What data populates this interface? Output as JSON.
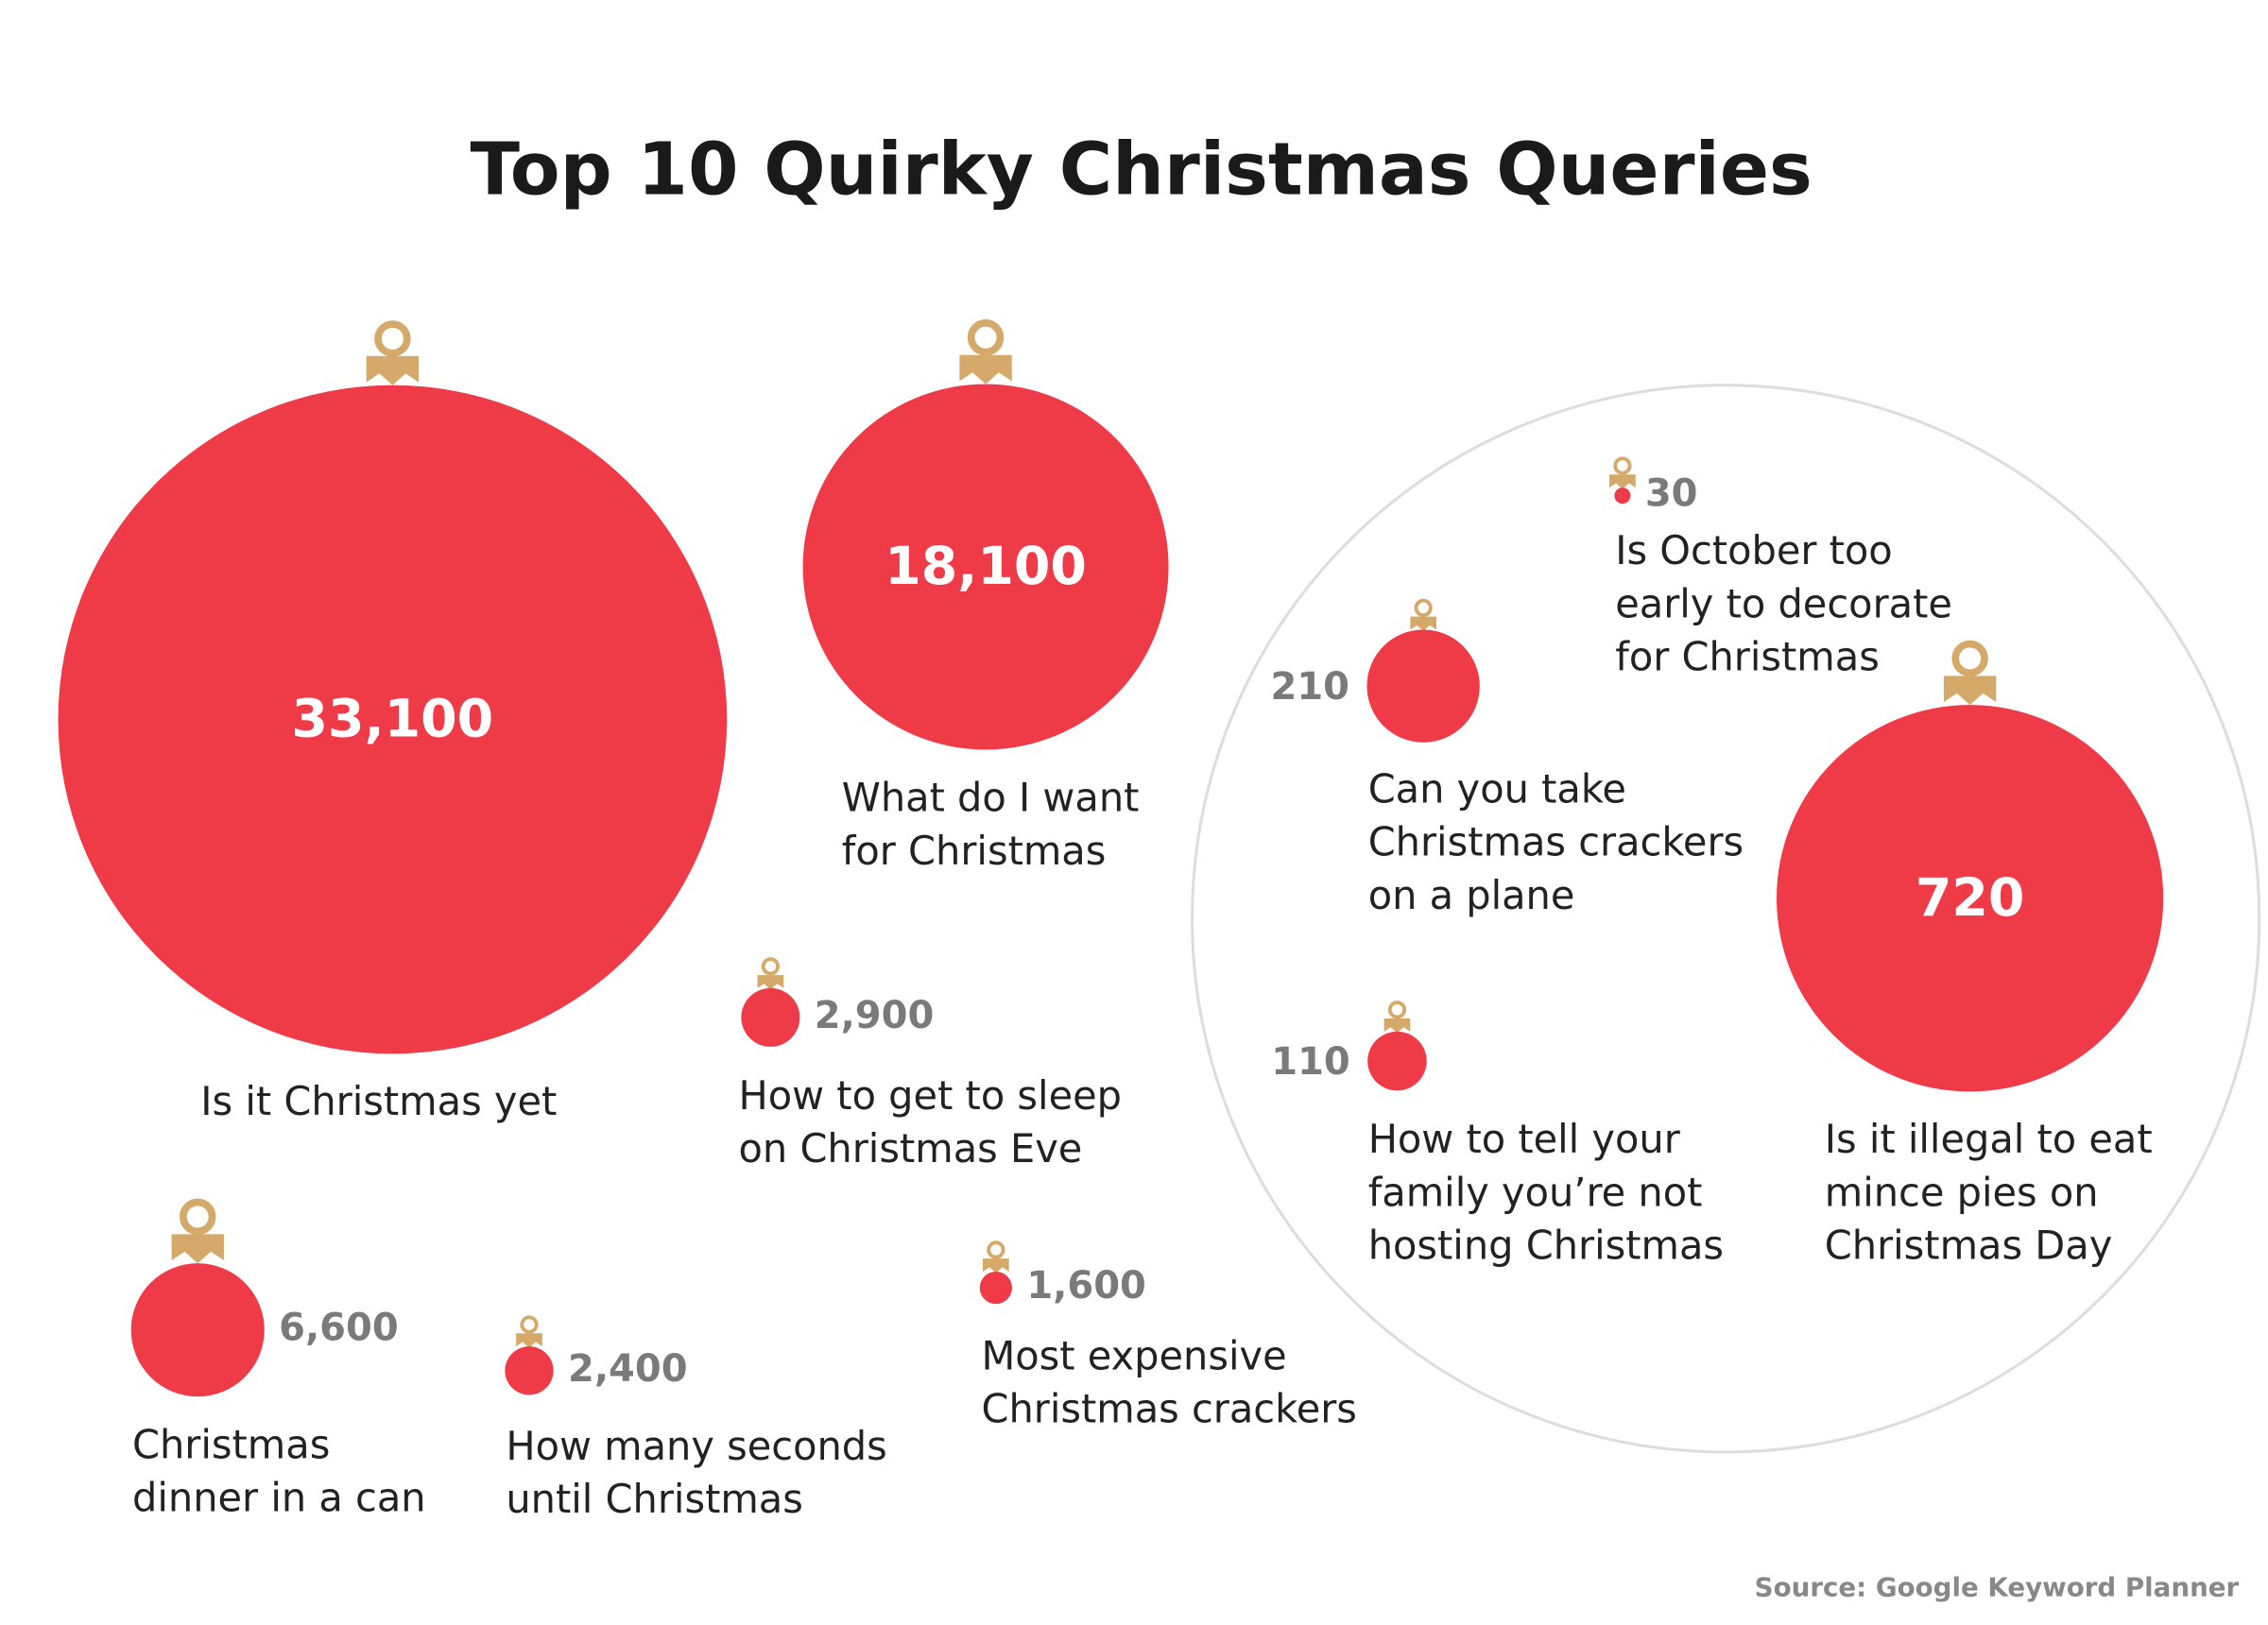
{
  "chart_data": {
    "type": "bubble",
    "title": "Top 10 Quirky Christmas Queries",
    "source": "Source: Google Keyword Planner",
    "categories": [
      "Is it Christmas yet",
      "What do I want for Christmas",
      "How to get to sleep on Christmas Eve",
      "Christmas dinner in a can",
      "How many seconds until Christmas",
      "Most expensive Christmas crackers",
      "Is it illegal to eat mince pies on Christmas Day",
      "Can you take Christmas crackers on a plane",
      "How to tell your family you’re not hosting Christmas",
      "Is October too early to decorate for Christmas"
    ],
    "values": [
      33100,
      18100,
      2900,
      6600,
      2400,
      1600,
      720,
      210,
      110,
      30
    ],
    "value_labels": [
      "33,100",
      "18,100",
      "2,900",
      "6,600",
      "2,400",
      "1,600",
      "720",
      "210",
      "110",
      "30"
    ],
    "color": "#ef3a47"
  }
}
